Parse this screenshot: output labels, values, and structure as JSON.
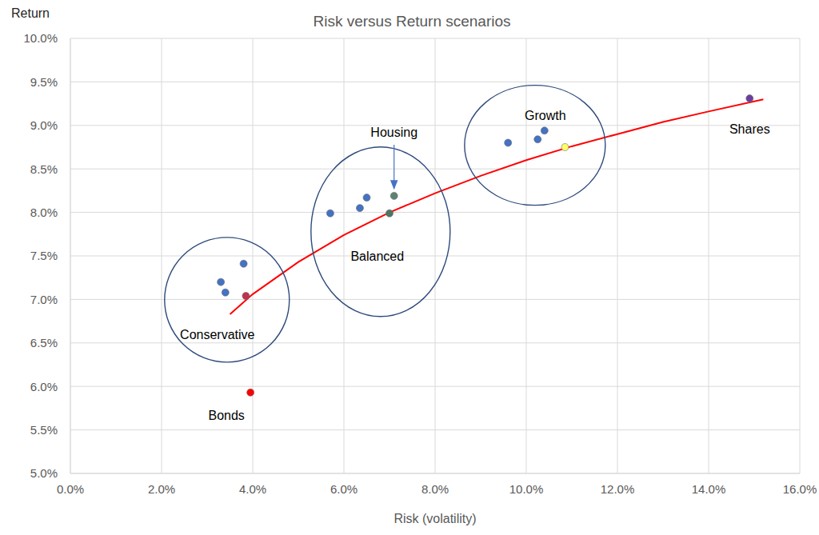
{
  "chart_data": {
    "type": "scatter",
    "title": "Risk versus Return scenarios",
    "x_label": "Risk (volatility)",
    "y_label": "Return",
    "xlim": [
      0,
      16
    ],
    "xticks": [
      {
        "value": 0,
        "label": "0.0%"
      },
      {
        "value": 2,
        "label": "2.0%"
      },
      {
        "value": 4,
        "label": "4.0%"
      },
      {
        "value": 6,
        "label": "6.0%"
      },
      {
        "value": 8,
        "label": "8.0%"
      },
      {
        "value": 10,
        "label": "10.0%"
      },
      {
        "value": 12,
        "label": "12.0%"
      },
      {
        "value": 14,
        "label": "14.0%"
      },
      {
        "value": 16,
        "label": "16.0%"
      }
    ],
    "ylim": [
      5,
      10
    ],
    "yticks": [
      {
        "value": 5,
        "label": "5.0%"
      },
      {
        "value": 5.5,
        "label": "5.5%"
      },
      {
        "value": 6,
        "label": "6.0%"
      },
      {
        "value": 6.5,
        "label": "6.5%"
      },
      {
        "value": 7,
        "label": "7.0%"
      },
      {
        "value": 7.5,
        "label": "7.5%"
      },
      {
        "value": 8,
        "label": "8.0%"
      },
      {
        "value": 8.5,
        "label": "8.5%"
      },
      {
        "value": 9,
        "label": "9.0%"
      },
      {
        "value": 9.5,
        "label": "9.5%"
      },
      {
        "value": 10,
        "label": "10.0%"
      }
    ],
    "grid": true,
    "marker": "circle",
    "groups": [
      {
        "name": "Conservative",
        "points": [
          {
            "x": 3.3,
            "y": 7.2,
            "color": "#4472c4"
          },
          {
            "x": 3.4,
            "y": 7.08,
            "color": "#4472c4"
          },
          {
            "x": 3.8,
            "y": 7.41,
            "color": "#4472c4"
          },
          {
            "x": 3.85,
            "y": 7.04,
            "color": "#c0304f"
          }
        ]
      },
      {
        "name": "Balanced",
        "points": [
          {
            "x": 5.7,
            "y": 7.99,
            "color": "#4472c4"
          },
          {
            "x": 6.35,
            "y": 8.05,
            "color": "#4472c4"
          },
          {
            "x": 6.5,
            "y": 8.17,
            "color": "#4472c4"
          },
          {
            "x": 7.0,
            "y": 7.99,
            "color": "#4f7561"
          },
          {
            "name": "Housing",
            "x": 7.1,
            "y": 8.19,
            "color": "#5f8270"
          }
        ]
      },
      {
        "name": "Growth",
        "points": [
          {
            "x": 9.6,
            "y": 8.8,
            "color": "#4472c4"
          },
          {
            "x": 10.25,
            "y": 8.84,
            "color": "#4472c4"
          },
          {
            "x": 10.4,
            "y": 8.94,
            "color": "#4472c4"
          },
          {
            "x": 10.85,
            "y": 8.75,
            "color": "#ffff66"
          }
        ]
      }
    ],
    "labeled_points": [
      {
        "name": "Bonds",
        "x": 3.95,
        "y": 5.93,
        "color": "#ff0000"
      },
      {
        "name": "Shares",
        "x": 14.9,
        "y": 9.31,
        "color": "#6a3fa0"
      }
    ],
    "trend": {
      "type": "line",
      "line_style": "solid",
      "color": "#ff0000",
      "x": [
        3.5,
        4,
        5,
        6,
        7,
        8,
        9,
        10,
        11,
        12,
        13,
        14,
        15.2
      ],
      "y": [
        6.83,
        7.06,
        7.43,
        7.74,
        8.0,
        8.22,
        8.42,
        8.6,
        8.76,
        8.9,
        9.04,
        9.16,
        9.3
      ]
    }
  }
}
